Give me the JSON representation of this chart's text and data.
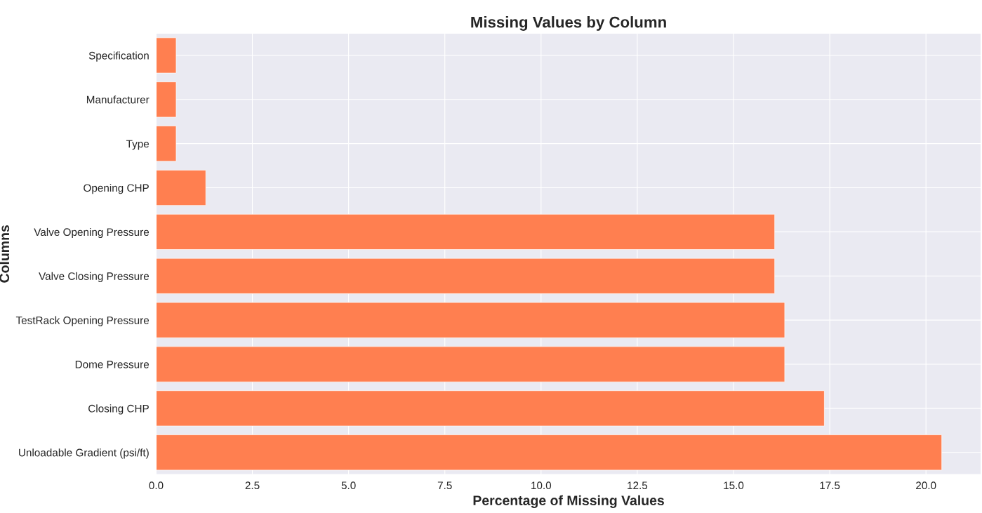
{
  "chart_data": {
    "type": "bar",
    "orientation": "horizontal",
    "title": "Missing Values by Column",
    "xlabel": "Percentage of Missing Values",
    "ylabel": "Columns",
    "categories": [
      "Specification",
      "Manufacturer",
      "Type",
      "Opening CHP",
      "Valve Opening Pressure",
      "Valve Closing Pressure",
      "TestRack Opening Pressure",
      "Dome Pressure",
      "Closing CHP",
      "Unloadable Gradient (psi/ft)"
    ],
    "values": [
      0.52,
      0.52,
      0.52,
      1.29,
      16.07,
      16.07,
      16.33,
      16.33,
      17.36,
      20.41
    ],
    "color": "#ff7f50",
    "xlim": [
      0,
      21.43
    ],
    "xticks": [
      {
        "value": 0,
        "label": "0.0"
      },
      2.5,
      {
        "value": 5,
        "label": "5.0"
      },
      7.5,
      {
        "value": 10,
        "label": "10.0"
      },
      12.5,
      {
        "value": 15,
        "label": "15.0"
      },
      17.5,
      {
        "value": 20,
        "label": "20.0"
      }
    ],
    "grid": true
  }
}
